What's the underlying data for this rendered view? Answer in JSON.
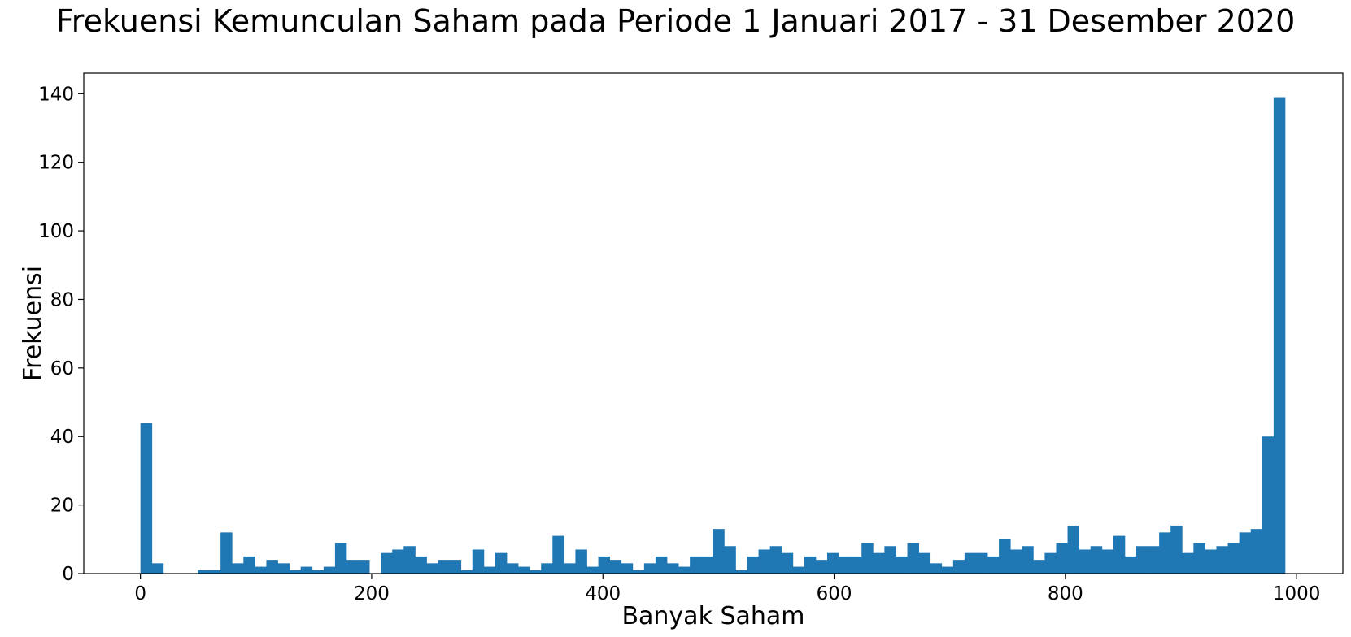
{
  "chart_data": {
    "type": "bar",
    "title": "Frekuensi Kemunculan Saham pada Periode 1 Januari 2017 - 31 Desember 2020",
    "xlabel": "Banyak Saham",
    "ylabel": "Frekuensi",
    "xlim": [
      -49,
      1040
    ],
    "ylim": [
      0,
      146
    ],
    "xticks": [
      0,
      200,
      400,
      600,
      800,
      1000
    ],
    "yticks": [
      0,
      20,
      40,
      60,
      80,
      100,
      120,
      140
    ],
    "xtick_labels": [
      "0",
      "200",
      "400",
      "600",
      "800",
      "1000"
    ],
    "ytick_labels": [
      "0",
      "20",
      "40",
      "60",
      "80",
      "100",
      "120",
      "140"
    ],
    "bin_start": 0,
    "bin_width": 9.9,
    "values": [
      44,
      3,
      0,
      0,
      0,
      1,
      1,
      12,
      3,
      5,
      2,
      4,
      3,
      1,
      2,
      1,
      2,
      9,
      4,
      4,
      0,
      6,
      7,
      8,
      5,
      3,
      4,
      4,
      1,
      7,
      2,
      6,
      3,
      2,
      1,
      3,
      11,
      3,
      7,
      2,
      5,
      4,
      3,
      1,
      3,
      5,
      3,
      2,
      5,
      5,
      13,
      8,
      1,
      5,
      7,
      8,
      6,
      2,
      5,
      4,
      6,
      5,
      5,
      9,
      6,
      8,
      5,
      9,
      6,
      3,
      2,
      4,
      6,
      6,
      5,
      10,
      7,
      8,
      4,
      6,
      9,
      14,
      7,
      8,
      7,
      11,
      5,
      8,
      8,
      12,
      14,
      6,
      9,
      7,
      8,
      9,
      12,
      13,
      40,
      139
    ],
    "bar_color": "#1f77b4",
    "grid": false,
    "legend": "none"
  }
}
